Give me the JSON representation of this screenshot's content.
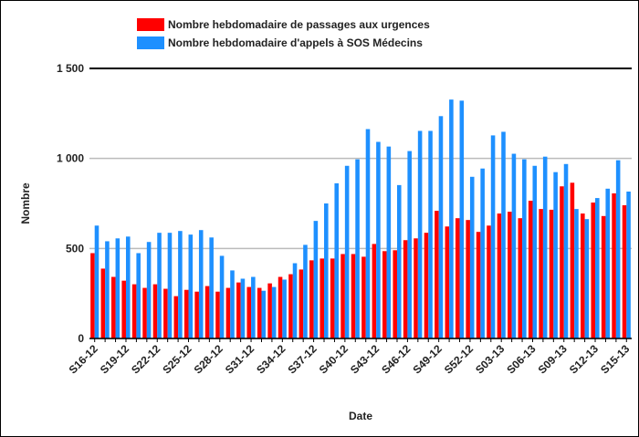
{
  "chart_data": {
    "type": "bar",
    "categories": [
      "S16-12",
      null,
      null,
      "S19-12",
      null,
      null,
      "S22-12",
      null,
      null,
      "S25-12",
      null,
      null,
      "S28-12",
      null,
      null,
      "S31-12",
      null,
      null,
      "S34-12",
      null,
      null,
      "S37-12",
      null,
      null,
      "S40-12",
      null,
      null,
      "S43-12",
      null,
      null,
      "S46-12",
      null,
      null,
      "S49-12",
      null,
      null,
      "S52-12",
      null,
      null,
      "S03-13",
      null,
      null,
      "S06-13",
      null,
      null,
      "S09-13",
      null,
      null,
      "S12-13",
      null,
      null,
      "S15-13"
    ],
    "series": [
      {
        "name": "Nombre hebdomadaire de passages aux urgences",
        "color": "#ff0000",
        "values": [
          474,
          388,
          342,
          321,
          301,
          281,
          301,
          276,
          235,
          270,
          260,
          291,
          260,
          281,
          311,
          286,
          281,
          306,
          342,
          357,
          383,
          434,
          444,
          444,
          469,
          469,
          454,
          525,
          485,
          490,
          546,
          556,
          587,
          709,
          622,
          668,
          658,
          592,
          627,
          694,
          704,
          668,
          765,
          719,
          715,
          845,
          865,
          694,
          755,
          680,
          806,
          740
        ]
      },
      {
        "name": "Nombre hebdomadaire d'appels à SOS Médecins",
        "color": "#1e90ff",
        "values": [
          627,
          540,
          556,
          566,
          474,
          536,
          587,
          587,
          597,
          577,
          602,
          561,
          459,
          378,
          332,
          342,
          265,
          286,
          327,
          418,
          520,
          653,
          750,
          862,
          959,
          995,
          1163,
          1092,
          1066,
          852,
          1041,
          1153,
          1153,
          1235,
          1327,
          1321,
          898,
          944,
          1128,
          1148,
          1026,
          995,
          959,
          1010,
          924,
          969,
          719,
          663,
          780,
          832,
          990,
          816
        ]
      }
    ],
    "ylim": [
      0,
      1500
    ],
    "yticks": [
      0,
      500,
      {
        "value": 1000,
        "label": "1 000"
      },
      {
        "value": 1500,
        "label": "1 500"
      }
    ],
    "grid": true,
    "ylabel": "Nombre",
    "xlabel": "Date"
  }
}
